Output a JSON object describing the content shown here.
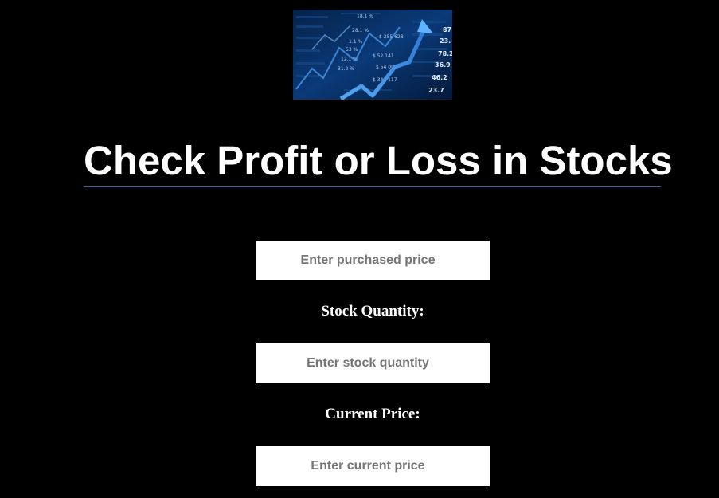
{
  "header": {
    "title": "Check Profit or Loss in Stocks"
  },
  "hero": {
    "icon": "stock-chart-image",
    "tickers": [
      "18.1 %",
      "28.1 %",
      "1.1 %",
      "53 %",
      "12.1 %",
      "31.2 %",
      "$ 255 628",
      "$ 52 141",
      "$ 54 009",
      "$ 341 117",
      "87",
      "23.",
      "78.2",
      "36.9",
      "46.2",
      "23.7"
    ]
  },
  "form": {
    "purchase_price": {
      "placeholder": "Enter purchased price",
      "value": ""
    },
    "quantity": {
      "label": "Stock Quantity:",
      "placeholder": "Enter stock quantity",
      "value": ""
    },
    "current_price": {
      "label": "Current Price:",
      "placeholder": "Enter current price",
      "value": ""
    }
  },
  "colors": {
    "background": "#000000",
    "title_text": "#ffffff",
    "title_underline": "#3f5fa8",
    "input_background": "#ffffff",
    "placeholder_text": "#757575"
  }
}
